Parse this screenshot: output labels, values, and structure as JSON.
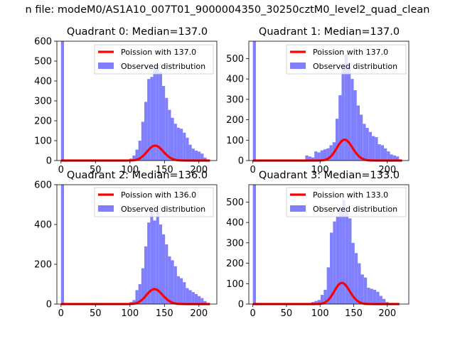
{
  "figure": {
    "suptitle": "n file: modeM0/AS1A10_007T01_9000004350_30250cztM0_level2_quad_clean"
  },
  "style": {
    "bar_color": "#8080ff",
    "line_color": "#ff0000",
    "background": "#ffffff"
  },
  "chart_data": [
    {
      "type": "bar",
      "quadrant": 0,
      "title": "Quadrant 0: Median=137.0",
      "median": 137.0,
      "xlim": [
        -6,
        226
      ],
      "ylim": [
        0,
        600
      ],
      "xticks": [
        0,
        50,
        100,
        150,
        200
      ],
      "yticks": [
        0,
        100,
        200,
        300,
        400,
        500,
        600
      ],
      "legend": {
        "location": "upper right",
        "entries": [
          "Poission with 137.0",
          "Observed distribution"
        ]
      },
      "histogram": {
        "bin_width": 4.3,
        "bins_left": [
          0,
          95,
          99.3,
          103.6,
          107.9,
          112.2,
          116.5,
          120.8,
          125.1,
          129.4,
          133.7,
          138,
          142.3,
          146.6,
          150.9,
          155.2,
          159.5,
          163.8,
          168.1,
          172.4,
          176.7,
          181,
          185.3,
          189.6,
          193.9,
          198.2,
          202.5,
          206.8
        ],
        "counts": [
          600,
          5,
          10,
          25,
          55,
          100,
          195,
          295,
          410,
          420,
          470,
          480,
          445,
          375,
          315,
          255,
          215,
          185,
          165,
          160,
          140,
          115,
          80,
          60,
          50,
          45,
          35,
          15
        ]
      },
      "poisson": {
        "label": "Poission with 137.0",
        "mean": 137.0,
        "scale": 2200,
        "x_range": [
          0,
          216
        ]
      }
    },
    {
      "type": "bar",
      "quadrant": 1,
      "title": "Quadrant 1: Median=137.0",
      "median": 137.0,
      "xlim": [
        -6,
        232
      ],
      "ylim": [
        0,
        585
      ],
      "xticks": [
        0,
        100,
        200
      ],
      "yticks": [
        0,
        100,
        200,
        300,
        400,
        500
      ],
      "legend": {
        "location": "upper right",
        "entries": [
          "Poission with 137.0",
          "Observed distribution"
        ]
      },
      "histogram": {
        "bin_width": 4.5,
        "bins_left": [
          0,
          50,
          78,
          82.5,
          87,
          91.5,
          96,
          100.5,
          105,
          109.5,
          114,
          118.5,
          123,
          127.5,
          132,
          136.5,
          141,
          145.5,
          150,
          154.5,
          159,
          163.5,
          168,
          172.5,
          177,
          181.5,
          186,
          190.5,
          195,
          199.5,
          204,
          208.5,
          213
        ],
        "counts": [
          585,
          5,
          25,
          20,
          15,
          45,
          40,
          50,
          55,
          60,
          75,
          90,
          205,
          320,
          470,
          520,
          480,
          400,
          345,
          270,
          225,
          180,
          160,
          140,
          120,
          115,
          80,
          75,
          60,
          45,
          30,
          25,
          20
        ]
      },
      "poisson": {
        "label": "Poission with 137.0",
        "mean": 137.0,
        "scale": 3000,
        "x_range": [
          0,
          222
        ]
      }
    },
    {
      "type": "bar",
      "quadrant": 2,
      "title": "Quadrant 2: Median=136.0",
      "median": 136.0,
      "xlim": [
        -6,
        226
      ],
      "ylim": [
        0,
        600
      ],
      "xticks": [
        0,
        50,
        100,
        150,
        200
      ],
      "yticks": [
        0,
        200,
        400,
        600
      ],
      "legend": {
        "location": "upper right",
        "entries": [
          "Poission with 136.0",
          "Observed distribution"
        ]
      },
      "histogram": {
        "bin_width": 4.3,
        "bins_left": [
          0,
          64,
          82,
          99.3,
          103.6,
          107.9,
          112.2,
          116.5,
          120.8,
          125.1,
          129.4,
          133.7,
          138,
          142.3,
          146.6,
          150.9,
          155.2,
          159.5,
          163.8,
          168.1,
          172.4,
          176.7,
          181,
          185.3,
          189.6,
          193.9,
          198.2,
          202.5,
          206.8
        ],
        "counts": [
          600,
          5,
          5,
          10,
          20,
          70,
          100,
          180,
          290,
          410,
          480,
          420,
          465,
          400,
          350,
          300,
          240,
          220,
          190,
          140,
          130,
          110,
          80,
          70,
          60,
          50,
          40,
          30,
          15
        ]
      },
      "poisson": {
        "label": "Poission with 136.0",
        "mean": 136.0,
        "scale": 2200,
        "x_range": [
          0,
          216
        ]
      }
    },
    {
      "type": "bar",
      "quadrant": 3,
      "title": "Quadrant 3: Median=133.0",
      "median": 133.0,
      "xlim": [
        -6,
        232
      ],
      "ylim": [
        0,
        585
      ],
      "xticks": [
        0,
        50,
        100,
        150,
        200
      ],
      "yticks": [
        0,
        100,
        200,
        300,
        400,
        500
      ],
      "legend": {
        "location": "upper right",
        "entries": [
          "Poission with 133.0",
          "Observed distribution"
        ]
      },
      "histogram": {
        "bin_width": 4.6,
        "bins_left": [
          0,
          60,
          78,
          87,
          91.6,
          96.2,
          100.8,
          105.4,
          110,
          114.6,
          119.2,
          123.8,
          128.4,
          133,
          137.6,
          142.2,
          146.8,
          151.4,
          156,
          160.6,
          165.2,
          169.8,
          174.4,
          179,
          183.6,
          188.2,
          192.8,
          197.4
        ],
        "counts": [
          585,
          5,
          5,
          10,
          15,
          20,
          45,
          70,
          180,
          350,
          405,
          430,
          470,
          510,
          460,
          420,
          300,
          250,
          200,
          145,
          130,
          80,
          75,
          70,
          60,
          40,
          25,
          10
        ]
      },
      "poisson": {
        "label": "Poission with 133.0",
        "mean": 133.0,
        "scale": 3000,
        "x_range": [
          0,
          218
        ]
      }
    }
  ]
}
